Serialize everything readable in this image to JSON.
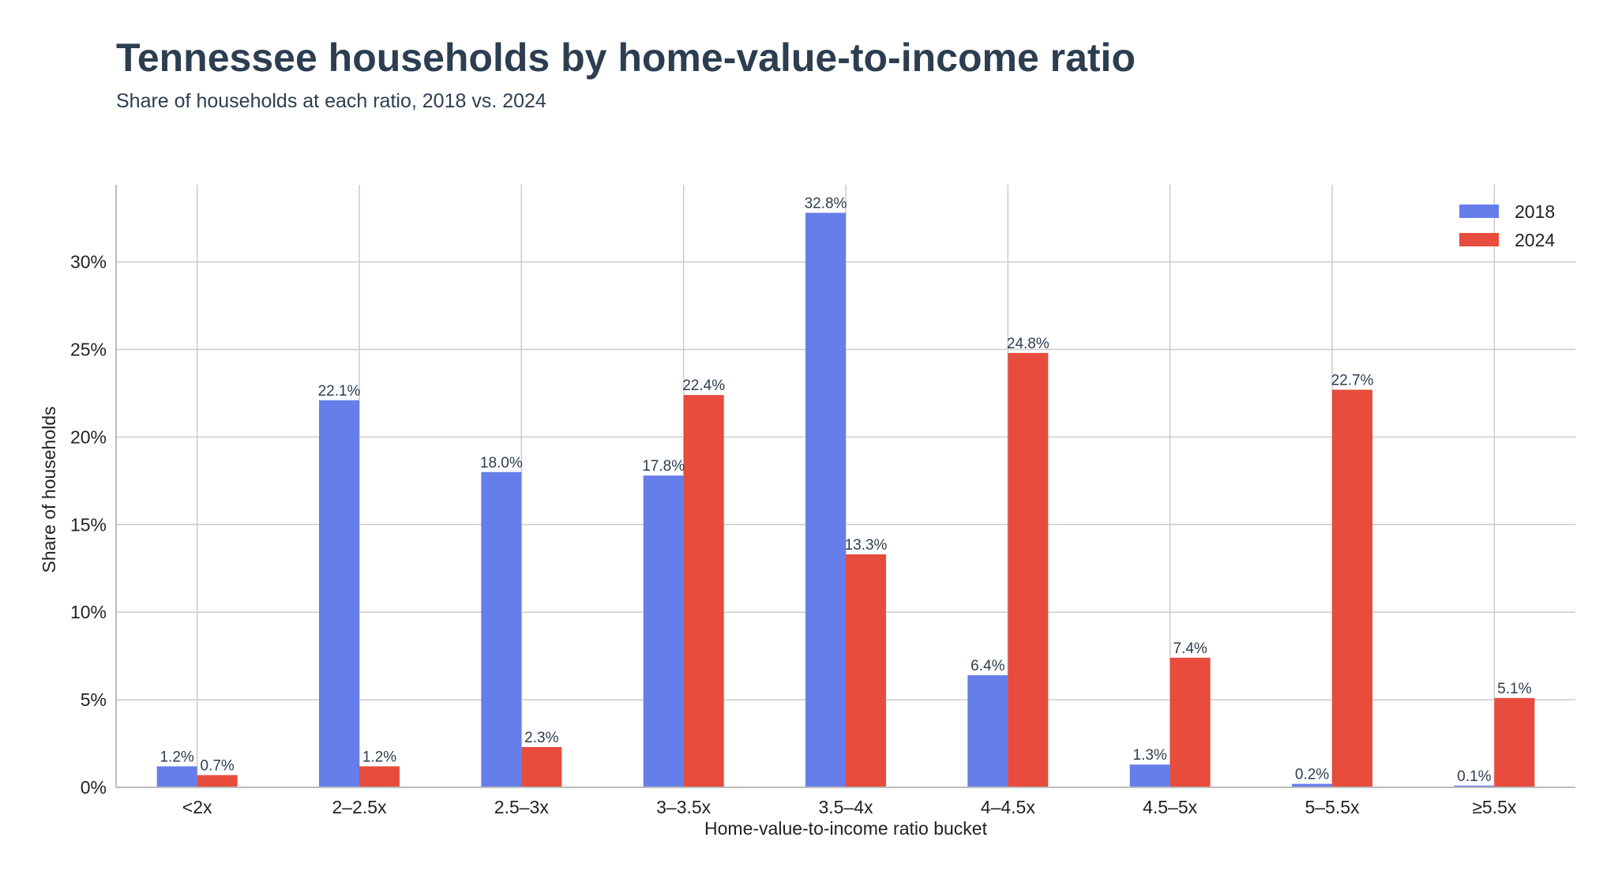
{
  "chart_data": {
    "type": "bar",
    "title": "Tennessee households by home-value-to-income ratio",
    "subtitle": "Share of households at each ratio, 2018 vs. 2024",
    "xlabel": "Home-value-to-income ratio bucket",
    "ylabel": "Share of households",
    "categories": [
      "<2x",
      "2–2.5x",
      "2.5–3x",
      "3–3.5x",
      "3.5–4x",
      "4–4.5x",
      "4.5–5x",
      "5–5.5x",
      "≥5.5x"
    ],
    "series": [
      {
        "name": "2018",
        "color": "#667eea",
        "values": [
          1.2,
          22.1,
          18.0,
          17.8,
          32.8,
          6.4,
          1.3,
          0.2,
          0.1
        ]
      },
      {
        "name": "2024",
        "color": "#e74c3c",
        "values": [
          0.7,
          1.2,
          2.3,
          22.4,
          13.3,
          24.8,
          7.4,
          22.7,
          5.1
        ]
      }
    ],
    "ylim": [
      0,
      34.4
    ],
    "yticks": [
      0,
      5,
      10,
      15,
      20,
      25,
      30
    ],
    "tick_suffix": "%",
    "value_suffix": "%",
    "grid": true,
    "legend_position": "top-right"
  }
}
